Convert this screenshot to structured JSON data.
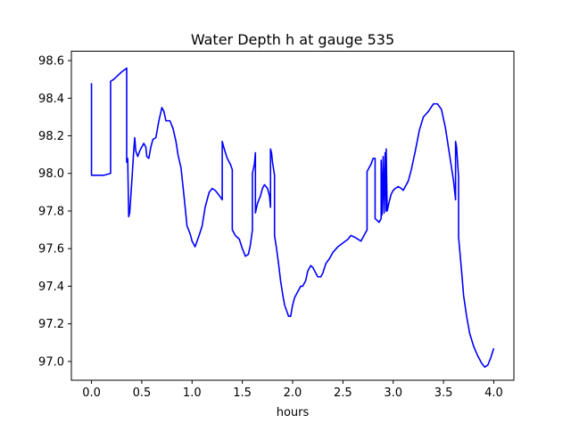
{
  "chart_data": {
    "type": "line",
    "title": "Water Depth h at gauge 535",
    "xlabel": "hours",
    "ylabel": "",
    "xlim": [
      -0.2,
      4.2
    ],
    "ylim": [
      96.9,
      98.65
    ],
    "xticks": [
      0.0,
      0.5,
      1.0,
      1.5,
      2.0,
      2.5,
      3.0,
      3.5,
      4.0
    ],
    "xtick_labels": [
      "0.0",
      "0.5",
      "1.0",
      "1.5",
      "2.0",
      "2.5",
      "3.0",
      "3.5",
      "4.0"
    ],
    "yticks": [
      97.0,
      97.2,
      97.4,
      97.6,
      97.8,
      98.0,
      98.2,
      98.4,
      98.6
    ],
    "ytick_labels": [
      "97.0",
      "97.2",
      "97.4",
      "97.6",
      "97.8",
      "98.0",
      "98.2",
      "98.4",
      "98.6"
    ],
    "grid": false,
    "legend": "none",
    "series": [
      {
        "color": "#0000ff",
        "points": [
          [
            0.0,
            98.48
          ],
          [
            0.0,
            97.99
          ],
          [
            0.05,
            97.99
          ],
          [
            0.12,
            97.99
          ],
          [
            0.19,
            98.0
          ],
          [
            0.19,
            98.49
          ],
          [
            0.22,
            98.5
          ],
          [
            0.26,
            98.52
          ],
          [
            0.3,
            98.54
          ],
          [
            0.35,
            98.56
          ],
          [
            0.35,
            98.06
          ],
          [
            0.36,
            98.08
          ],
          [
            0.37,
            97.77
          ],
          [
            0.38,
            97.79
          ],
          [
            0.4,
            97.95
          ],
          [
            0.42,
            98.12
          ],
          [
            0.43,
            98.19
          ],
          [
            0.44,
            98.12
          ],
          [
            0.46,
            98.09
          ],
          [
            0.48,
            98.12
          ],
          [
            0.5,
            98.14
          ],
          [
            0.52,
            98.16
          ],
          [
            0.54,
            98.14
          ],
          [
            0.55,
            98.09
          ],
          [
            0.57,
            98.08
          ],
          [
            0.59,
            98.14
          ],
          [
            0.61,
            98.18
          ],
          [
            0.64,
            98.19
          ],
          [
            0.67,
            98.28
          ],
          [
            0.7,
            98.35
          ],
          [
            0.72,
            98.33
          ],
          [
            0.74,
            98.28
          ],
          [
            0.78,
            98.28
          ],
          [
            0.81,
            98.24
          ],
          [
            0.84,
            98.17
          ],
          [
            0.86,
            98.1
          ],
          [
            0.89,
            98.03
          ],
          [
            0.92,
            97.88
          ],
          [
            0.95,
            97.72
          ],
          [
            0.98,
            97.68
          ],
          [
            1.0,
            97.64
          ],
          [
            1.03,
            97.61
          ],
          [
            1.07,
            97.67
          ],
          [
            1.1,
            97.72
          ],
          [
            1.13,
            97.82
          ],
          [
            1.17,
            97.9
          ],
          [
            1.2,
            97.92
          ],
          [
            1.23,
            97.91
          ],
          [
            1.26,
            97.89
          ],
          [
            1.3,
            97.86
          ],
          [
            1.3,
            98.17
          ],
          [
            1.32,
            98.13
          ],
          [
            1.35,
            98.08
          ],
          [
            1.38,
            98.05
          ],
          [
            1.4,
            98.02
          ],
          [
            1.4,
            97.7
          ],
          [
            1.43,
            97.67
          ],
          [
            1.47,
            97.65
          ],
          [
            1.5,
            97.6
          ],
          [
            1.53,
            97.56
          ],
          [
            1.56,
            97.57
          ],
          [
            1.58,
            97.62
          ],
          [
            1.6,
            97.7
          ],
          [
            1.6,
            98.0
          ],
          [
            1.62,
            98.05
          ],
          [
            1.63,
            98.11
          ],
          [
            1.63,
            97.79
          ],
          [
            1.65,
            97.84
          ],
          [
            1.68,
            97.88
          ],
          [
            1.7,
            97.92
          ],
          [
            1.72,
            97.94
          ],
          [
            1.75,
            97.92
          ],
          [
            1.77,
            97.88
          ],
          [
            1.78,
            97.82
          ],
          [
            1.78,
            98.13
          ],
          [
            1.79,
            98.11
          ],
          [
            1.8,
            98.06
          ],
          [
            1.82,
            97.99
          ],
          [
            1.82,
            97.67
          ],
          [
            1.84,
            97.6
          ],
          [
            1.86,
            97.52
          ],
          [
            1.88,
            97.43
          ],
          [
            1.9,
            97.36
          ],
          [
            1.92,
            97.3
          ],
          [
            1.94,
            97.27
          ],
          [
            1.96,
            97.24
          ],
          [
            1.98,
            97.24
          ],
          [
            2.0,
            97.3
          ],
          [
            2.02,
            97.34
          ],
          [
            2.05,
            97.37
          ],
          [
            2.08,
            97.4
          ],
          [
            2.1,
            97.4
          ],
          [
            2.13,
            97.43
          ],
          [
            2.15,
            97.48
          ],
          [
            2.18,
            97.51
          ],
          [
            2.2,
            97.5
          ],
          [
            2.23,
            97.47
          ],
          [
            2.25,
            97.45
          ],
          [
            2.28,
            97.45
          ],
          [
            2.3,
            97.47
          ],
          [
            2.33,
            97.52
          ],
          [
            2.37,
            97.55
          ],
          [
            2.4,
            97.58
          ],
          [
            2.45,
            97.61
          ],
          [
            2.5,
            97.63
          ],
          [
            2.55,
            97.65
          ],
          [
            2.58,
            97.67
          ],
          [
            2.62,
            97.66
          ],
          [
            2.65,
            97.65
          ],
          [
            2.68,
            97.64
          ],
          [
            2.72,
            97.68
          ],
          [
            2.74,
            97.7
          ],
          [
            2.74,
            98.01
          ],
          [
            2.76,
            98.03
          ],
          [
            2.78,
            98.05
          ],
          [
            2.8,
            98.08
          ],
          [
            2.82,
            98.08
          ],
          [
            2.82,
            97.76
          ],
          [
            2.84,
            97.75
          ],
          [
            2.86,
            97.74
          ],
          [
            2.88,
            97.76
          ],
          [
            2.88,
            98.07
          ],
          [
            2.89,
            97.78
          ],
          [
            2.9,
            98.09
          ],
          [
            2.91,
            97.79
          ],
          [
            2.92,
            98.11
          ],
          [
            2.93,
            97.8
          ],
          [
            2.93,
            98.13
          ],
          [
            2.94,
            97.8
          ],
          [
            2.96,
            97.85
          ],
          [
            2.98,
            97.89
          ],
          [
            3.0,
            97.91
          ],
          [
            3.02,
            97.92
          ],
          [
            3.05,
            97.93
          ],
          [
            3.08,
            97.92
          ],
          [
            3.1,
            97.91
          ],
          [
            3.12,
            97.93
          ],
          [
            3.15,
            97.96
          ],
          [
            3.18,
            98.02
          ],
          [
            3.22,
            98.12
          ],
          [
            3.26,
            98.23
          ],
          [
            3.3,
            98.3
          ],
          [
            3.35,
            98.33
          ],
          [
            3.4,
            98.37
          ],
          [
            3.44,
            98.37
          ],
          [
            3.48,
            98.34
          ],
          [
            3.52,
            98.24
          ],
          [
            3.56,
            98.1
          ],
          [
            3.6,
            97.96
          ],
          [
            3.62,
            97.86
          ],
          [
            3.62,
            98.17
          ],
          [
            3.63,
            98.14
          ],
          [
            3.64,
            98.06
          ],
          [
            3.65,
            97.98
          ],
          [
            3.65,
            97.66
          ],
          [
            3.68,
            97.48
          ],
          [
            3.7,
            97.35
          ],
          [
            3.73,
            97.24
          ],
          [
            3.76,
            97.15
          ],
          [
            3.8,
            97.08
          ],
          [
            3.84,
            97.03
          ],
          [
            3.88,
            96.99
          ],
          [
            3.91,
            96.97
          ],
          [
            3.94,
            96.98
          ],
          [
            3.97,
            97.02
          ],
          [
            4.0,
            97.07
          ]
        ]
      }
    ]
  }
}
